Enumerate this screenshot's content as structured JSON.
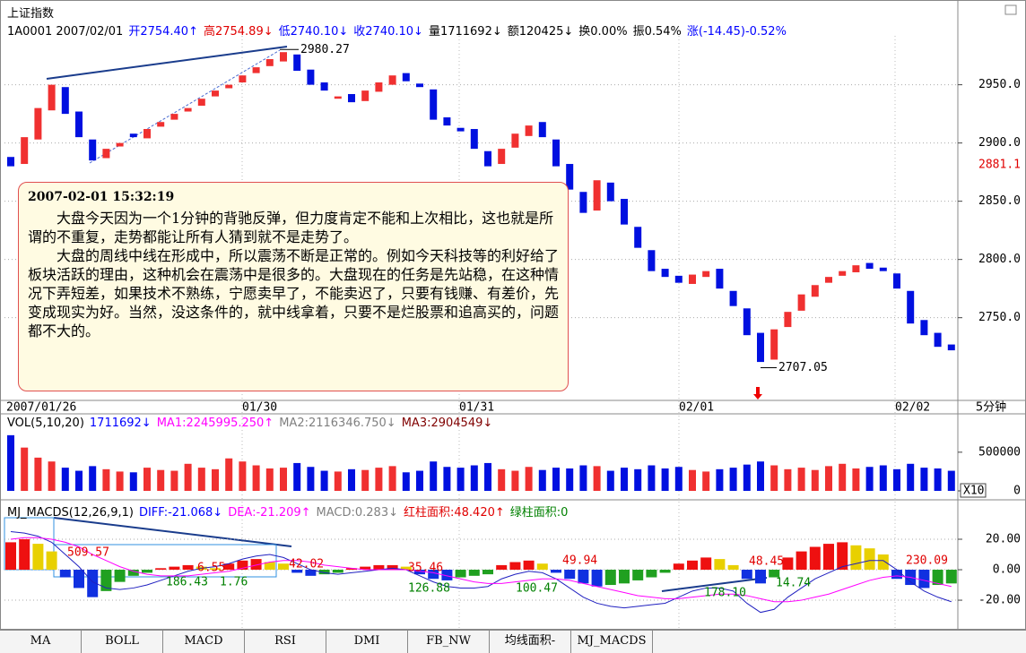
{
  "header": {
    "title": "上证指数",
    "items": [
      {
        "text": "1A0001 2007/02/01",
        "color": "#000000"
      },
      {
        "text": "开2754.40↑",
        "color": "#0000ff"
      },
      {
        "text": "高2754.89↓",
        "color": "#e00000"
      },
      {
        "text": "低2740.10↓",
        "color": "#0000ff"
      },
      {
        "text": "收2740.10↓",
        "color": "#0000ff"
      },
      {
        "text": "量1711692↓",
        "color": "#000000"
      },
      {
        "text": "额120425↓",
        "color": "#000000"
      },
      {
        "text": "换0.00%",
        "color": "#000000"
      },
      {
        "text": "振0.54%",
        "color": "#000000"
      },
      {
        "text": "涨(-14.45)-0.52%",
        "color": "#0000ff"
      }
    ]
  },
  "chart_data": [
    {
      "type": "candlestick",
      "up_color": "#f03030",
      "down_color": "#0010e0",
      "open": [
        2888,
        2882,
        2903,
        2928,
        2948,
        2927,
        2903,
        2887,
        2897,
        2908,
        2904,
        2914,
        2920,
        2927,
        2932,
        2940,
        2947,
        2952,
        2960,
        2966,
        2970,
        2976,
        2963,
        2952,
        2938,
        2942,
        2936,
        2944,
        2950,
        2960,
        2951,
        2946,
        2922,
        2913,
        2912,
        2893,
        2882,
        2896,
        2906,
        2918,
        2903,
        2882,
        2858,
        2842,
        2866,
        2852,
        2828,
        2808,
        2792,
        2786,
        2779,
        2785,
        2792,
        2773,
        2758,
        2737,
        2714,
        2742,
        2756,
        2768,
        2780,
        2786,
        2789,
        2797,
        2793,
        2788,
        2773,
        2748,
        2737,
        2727
      ],
      "close": [
        2880,
        2905,
        2930,
        2950,
        2925,
        2905,
        2885,
        2895,
        2900,
        2905,
        2912,
        2918,
        2925,
        2930,
        2938,
        2945,
        2950,
        2958,
        2965,
        2972,
        2978,
        2962,
        2950,
        2945,
        2940,
        2935,
        2945,
        2952,
        2958,
        2953,
        2948,
        2920,
        2915,
        2910,
        2895,
        2880,
        2895,
        2908,
        2915,
        2905,
        2880,
        2860,
        2840,
        2868,
        2850,
        2830,
        2810,
        2790,
        2785,
        2780,
        2787,
        2790,
        2775,
        2760,
        2735,
        2712,
        2740,
        2755,
        2770,
        2778,
        2785,
        2790,
        2795,
        2792,
        2790,
        2775,
        2745,
        2735,
        2725,
        2722
      ],
      "ylim": [
        2679,
        2992
      ],
      "yticks": [
        {
          "value": 2750,
          "label": "2750.0"
        },
        {
          "value": 2800,
          "label": "2800.0"
        },
        {
          "value": 2850,
          "label": "2850.0"
        },
        {
          "value": 2900,
          "label": "2900.0"
        },
        {
          "value": 2950,
          "label": "2950.0"
        }
      ],
      "marker": {
        "value": 2881.1,
        "label": "2881.1",
        "color": "#e00000"
      },
      "annotations": [
        2980.27,
        2707.05
      ],
      "x_labels": [
        "2007/01/26",
        "01/30",
        "01/31",
        "02/01",
        "02/02"
      ],
      "period": "5分钟",
      "grid": true
    },
    {
      "type": "bar",
      "header": [
        {
          "text": "VOL(5,10,20)",
          "color": "#000000"
        },
        {
          "text": "1711692↓",
          "color": "#0000ff"
        },
        {
          "text": "MA1:2245995.250↑",
          "color": "#ff00ff"
        },
        {
          "text": "MA2:2116346.750↓",
          "color": "#808080"
        },
        {
          "text": "MA3:2904549↓",
          "color": "#800000"
        }
      ],
      "values": [
        720000,
        560000,
        430000,
        380000,
        300000,
        260000,
        320000,
        280000,
        250000,
        240000,
        300000,
        270000,
        260000,
        350000,
        300000,
        280000,
        420000,
        380000,
        330000,
        290000,
        300000,
        360000,
        310000,
        260000,
        250000,
        280000,
        270000,
        300000,
        320000,
        240000,
        260000,
        380000,
        310000,
        300000,
        330000,
        360000,
        280000,
        260000,
        310000,
        270000,
        300000,
        290000,
        330000,
        320000,
        260000,
        300000,
        280000,
        330000,
        290000,
        310000,
        270000,
        250000,
        280000,
        300000,
        340000,
        380000,
        330000,
        280000,
        300000,
        270000,
        320000,
        350000,
        290000,
        310000,
        330000,
        280000,
        350000,
        300000,
        290000,
        260000
      ],
      "ylim": [
        0,
        950000
      ],
      "yticks": [
        0,
        500000
      ],
      "scale_label": "X10"
    },
    {
      "type": "macd",
      "header": [
        {
          "text": "MJ_MACDS(12,26,9,1)",
          "color": "#000000"
        },
        {
          "text": "DIFF:-21.068↓",
          "color": "#0000ff"
        },
        {
          "text": "DEA:-21.209↑",
          "color": "#ff00ff"
        },
        {
          "text": "MACD:0.283↓",
          "color": "#808080"
        },
        {
          "text": "红柱面积:48.420↑",
          "color": "#e00000"
        },
        {
          "text": "绿柱面积:0",
          "color": "#008000"
        }
      ],
      "values": [
        18,
        20,
        17,
        12,
        -5,
        -12,
        -18,
        -14,
        -8,
        -4,
        -2,
        1,
        2,
        3,
        2,
        1,
        4,
        6,
        7,
        5,
        4,
        -2,
        -4,
        -3,
        -2,
        1,
        2,
        3,
        3,
        2,
        -3,
        -6,
        -7,
        -5,
        -4,
        -3,
        3,
        5,
        6,
        4,
        -2,
        -6,
        -9,
        -11,
        -10,
        -9,
        -7,
        -5,
        -2,
        4,
        6,
        8,
        7,
        3,
        -6,
        -9,
        -5,
        8,
        12,
        15,
        17,
        18,
        16,
        14,
        10,
        -6,
        -10,
        -12,
        -10,
        -9
      ],
      "diff": [
        25,
        24,
        22,
        18,
        10,
        2,
        -8,
        -12,
        -13,
        -12,
        -10,
        -7,
        -4,
        -1,
        1,
        2,
        4,
        7,
        9,
        10,
        8,
        4,
        0,
        -2,
        -3,
        -2,
        -1,
        0,
        1,
        0,
        -4,
        -8,
        -11,
        -12,
        -12,
        -11,
        -6,
        -3,
        -1,
        -2,
        -6,
        -12,
        -18,
        -22,
        -24,
        -25,
        -24,
        -23,
        -22,
        -18,
        -14,
        -12,
        -12,
        -14,
        -22,
        -28,
        -26,
        -18,
        -12,
        -6,
        -2,
        2,
        4,
        6,
        6,
        0,
        -8,
        -14,
        -18,
        -21
      ],
      "dea": [
        20,
        21,
        21,
        20,
        18,
        15,
        10,
        6,
        2,
        -1,
        -3,
        -4,
        -4,
        -4,
        -3,
        -2,
        -1,
        1,
        3,
        5,
        6,
        6,
        5,
        3,
        2,
        1,
        0,
        0,
        0,
        0,
        -1,
        -2,
        -4,
        -6,
        -8,
        -9,
        -9,
        -8,
        -7,
        -6,
        -6,
        -7,
        -9,
        -11,
        -13,
        -15,
        -17,
        -18,
        -19,
        -19,
        -18,
        -17,
        -16,
        -16,
        -17,
        -19,
        -21,
        -21,
        -20,
        -18,
        -16,
        -13,
        -10,
        -7,
        -5,
        -4,
        -5,
        -7,
        -9,
        -11
      ],
      "diff_color": "#2020c0",
      "dea_color": "#ff00ff",
      "ylim": [
        -37.6,
        43.5
      ],
      "yticks": [
        {
          "value": 20,
          "label": "20.00"
        },
        {
          "value": 0,
          "label": "0.00"
        },
        {
          "value": -20,
          "label": "-20.00"
        }
      ],
      "annotations": [
        {
          "label": "509.57",
          "color": "#e00000"
        },
        {
          "label": "6.55",
          "color": "#e00000"
        },
        {
          "label": "186.43",
          "color": "#008000"
        },
        {
          "label": "1.76",
          "color": "#008000"
        },
        {
          "label": "42.02",
          "color": "#e00000"
        },
        {
          "label": "35.46",
          "color": "#e00000"
        },
        {
          "label": "126.88",
          "color": "#008000"
        },
        {
          "label": "49.94",
          "color": "#e00000"
        },
        {
          "label": "100.47",
          "color": "#008000"
        },
        {
          "label": "48.45",
          "color": "#e00000"
        },
        {
          "label": "178.10",
          "color": "#008000"
        },
        {
          "label": "14.74",
          "color": "#008000"
        },
        {
          "label": "230.09",
          "color": "#e00000"
        }
      ]
    }
  ],
  "note": {
    "title": "2007-02-01 15:32:19",
    "paragraphs": [
      "大盘今天因为一个1分钟的背驰反弹，但力度肯定不能和上次相比，这也就是所谓的不重复，走势都能让所有人猜到就不是走势了。",
      "大盘的周线中线在形成中，所以震荡不断是正常的。例如今天科技等的利好给了板块活跃的理由，这种机会在震荡中是很多的。大盘现在的任务是先站稳，在这种情况下弄短差，如果技术不熟练，宁愿卖早了，不能卖迟了，只要有钱赚、有差价，先变成现实为好。当然，没这条件的，就中线拿着，只要不是烂股票和追高买的，问题都不大的。"
    ]
  },
  "tabs": [
    "MA",
    "BOLL",
    "MACD",
    "RSI",
    "DMI",
    "FB_NW",
    "均线面积-",
    "MJ_MACDS"
  ]
}
